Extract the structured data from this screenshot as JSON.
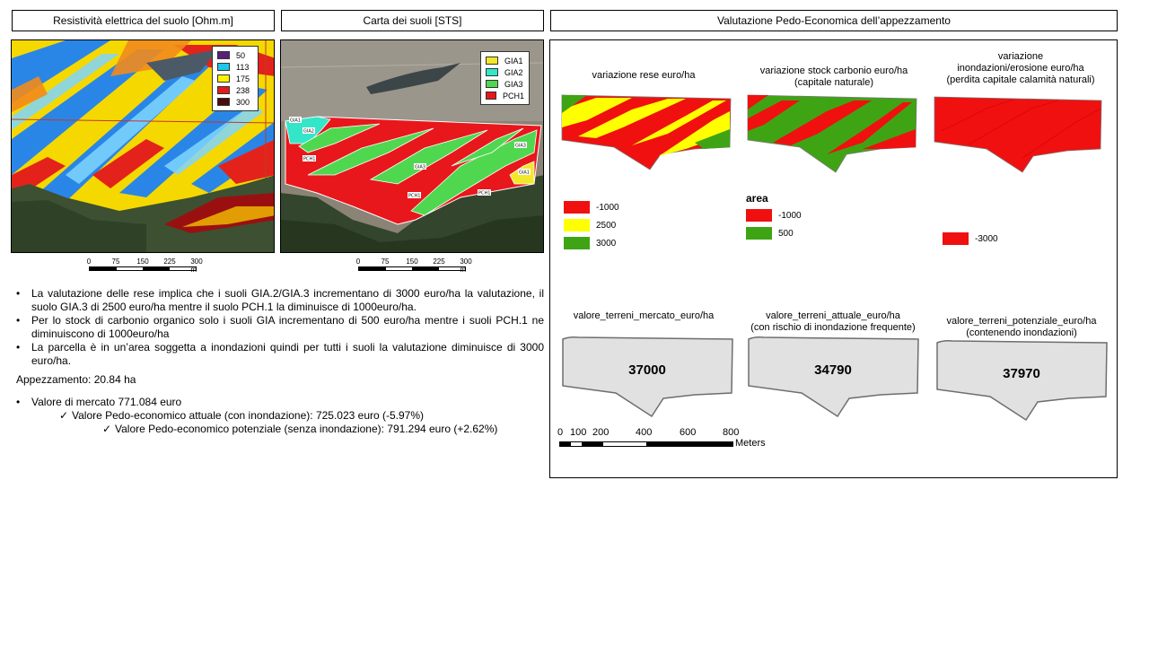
{
  "panels": {
    "resistivity_title": "Resistività elettrica del suolo [Ohm.m]",
    "soil_title": "Carta dei suoli [STS]",
    "evaluation_title": "Valutazione Pedo-Economica dell’appezzamento"
  },
  "resistivity_legend": [
    {
      "label": "50",
      "color": "#5b1f7a"
    },
    {
      "label": "113",
      "color": "#1fc8e8"
    },
    {
      "label": "175",
      "color": "#fff200"
    },
    {
      "label": "238",
      "color": "#e31a1c"
    },
    {
      "label": "300",
      "color": "#4a0d0d"
    }
  ],
  "soil_legend": [
    {
      "label": "GIA1",
      "color": "#f2e829"
    },
    {
      "label": "GIA2",
      "color": "#34e6c8"
    },
    {
      "label": "GIA3",
      "color": "#4fd84f"
    },
    {
      "label": "PCH1",
      "color": "#e8171b"
    }
  ],
  "soil_map_labels": {
    "gia1_top": "GIA1",
    "gia2": "GIA2",
    "gia3_right": "GIA3",
    "gia3_center": "GIA3",
    "gia1_right": "GIA1",
    "pch1_left": "PCH1",
    "pch1_center": "PCH1",
    "pch1_right": "PCH1"
  },
  "scale_small": {
    "ticks": [
      "0",
      "75",
      "150",
      "225",
      "300 m"
    ]
  },
  "notes": {
    "bullets": [
      "La valutazione  delle rese implica che i suoli GIA.2/GIA.3 incrementano di 3000 euro/ha la valutazione,  il suolo GIA.3 di 2500 euro/ha mentre il suolo PCH.1 la diminuisce di 1000euro/ha.",
      "Per lo stock di carbonio organico  solo i suoli GIA incrementano di 500 euro/ha mentre i suoli PCH.1 ne diminuiscono di 1000euro/ha",
      "La parcella è in un’area  soggetta a inondazioni quindi per tutti i suoli la valutazione  diminuisce di 3000 euro/ha."
    ],
    "area": "Appezzamento: 20.84 ha",
    "market": "Valore di mercato 771.084 euro",
    "current": "Valore Pedo-economico attuale (con inondazione): 725.023 euro  (-5.97%)",
    "potential": "Valore Pedo-economico potenziale (senza inondazione): 791.294 euro (+2.62%)",
    "check_mark": "✓"
  },
  "evaluation": {
    "yield_label": "variazione rese euro/ha",
    "carbon_label_1": "variazione stock carbonio euro/ha",
    "carbon_label_2": "(capitale naturale)",
    "flood_label_1": "variazione",
    "flood_label_2": "inondazioni/erosione euro/ha",
    "flood_label_3": "(perdita capitale calamità naturali)",
    "yield_legend": [
      {
        "label": "-1000",
        "color": "#f01010"
      },
      {
        "label": "2500",
        "color": "#ffff00"
      },
      {
        "label": "3000",
        "color": "#3fa414"
      }
    ],
    "carbon_legend_title": "area",
    "carbon_legend": [
      {
        "label": "-1000",
        "color": "#f01010"
      },
      {
        "label": "500",
        "color": "#3fa414"
      }
    ],
    "flood_legend": [
      {
        "label": "-3000",
        "color": "#f01010"
      }
    ],
    "market_label": "valore_terreni_mercato_euro/ha",
    "current_label_1": "valore_terreni_attuale_euro/ha",
    "current_label_2": "(con rischio di inondazione frequente)",
    "potential_label_1": "valore_terreni_potenziale_euro/ha",
    "potential_label_2": "(contenendo inondazioni)",
    "market_value": "37000",
    "current_value": "34790",
    "potential_value": "37970",
    "scale_ticks": [
      "0",
      "100",
      "200",
      "400",
      "600",
      "800"
    ],
    "scale_unit": "Meters"
  }
}
